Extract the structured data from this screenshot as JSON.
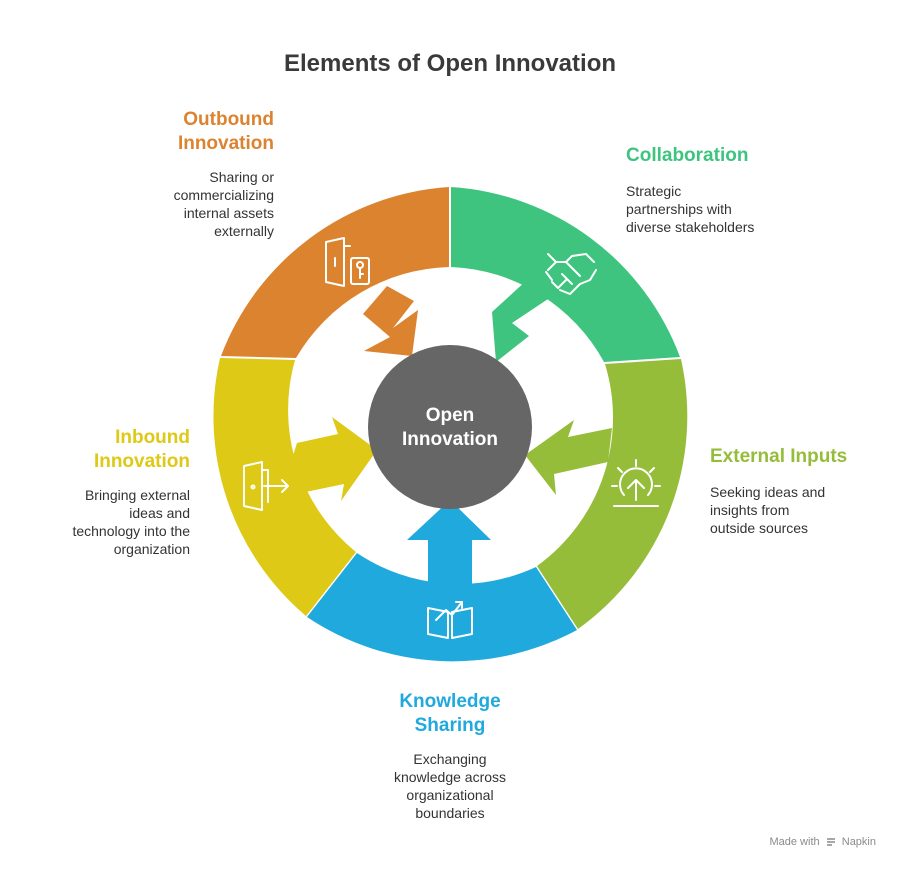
{
  "title": "Elements of Open Innovation",
  "center": {
    "line1": "Open",
    "line2": "Innovation"
  },
  "segments": [
    {
      "id": "outbound",
      "title_line1": "Outbound",
      "title_line2": "Innovation",
      "desc": [
        "Sharing or",
        "commercializing",
        "internal assets",
        "externally"
      ],
      "color": "#DC8330",
      "icon": "door-key-icon"
    },
    {
      "id": "collaboration",
      "title_line1": "Collaboration",
      "title_line2": "",
      "desc": [
        "Strategic",
        "partnerships with",
        "diverse stakeholders"
      ],
      "color": "#3EC47F",
      "icon": "handshake-icon"
    },
    {
      "id": "external",
      "title_line1": "External Inputs",
      "title_line2": "",
      "desc": [
        "Seeking ideas and",
        "insights from",
        "outside sources"
      ],
      "color": "#95BD3A",
      "icon": "idea-bulb-icon"
    },
    {
      "id": "knowledge",
      "title_line1": "Knowledge",
      "title_line2": "Sharing",
      "desc": [
        "Exchanging",
        "knowledge across",
        "organizational",
        "boundaries"
      ],
      "color": "#20A9DD",
      "icon": "book-growth-icon"
    },
    {
      "id": "inbound",
      "title_line1": "Inbound",
      "title_line2": "Innovation",
      "desc": [
        "Bringing external",
        "ideas and",
        "technology into the",
        "organization"
      ],
      "color": "#DDC916",
      "icon": "door-enter-icon"
    }
  ],
  "hub_color": "#666666",
  "footer": {
    "made_with": "Made with",
    "brand": "Napkin"
  }
}
